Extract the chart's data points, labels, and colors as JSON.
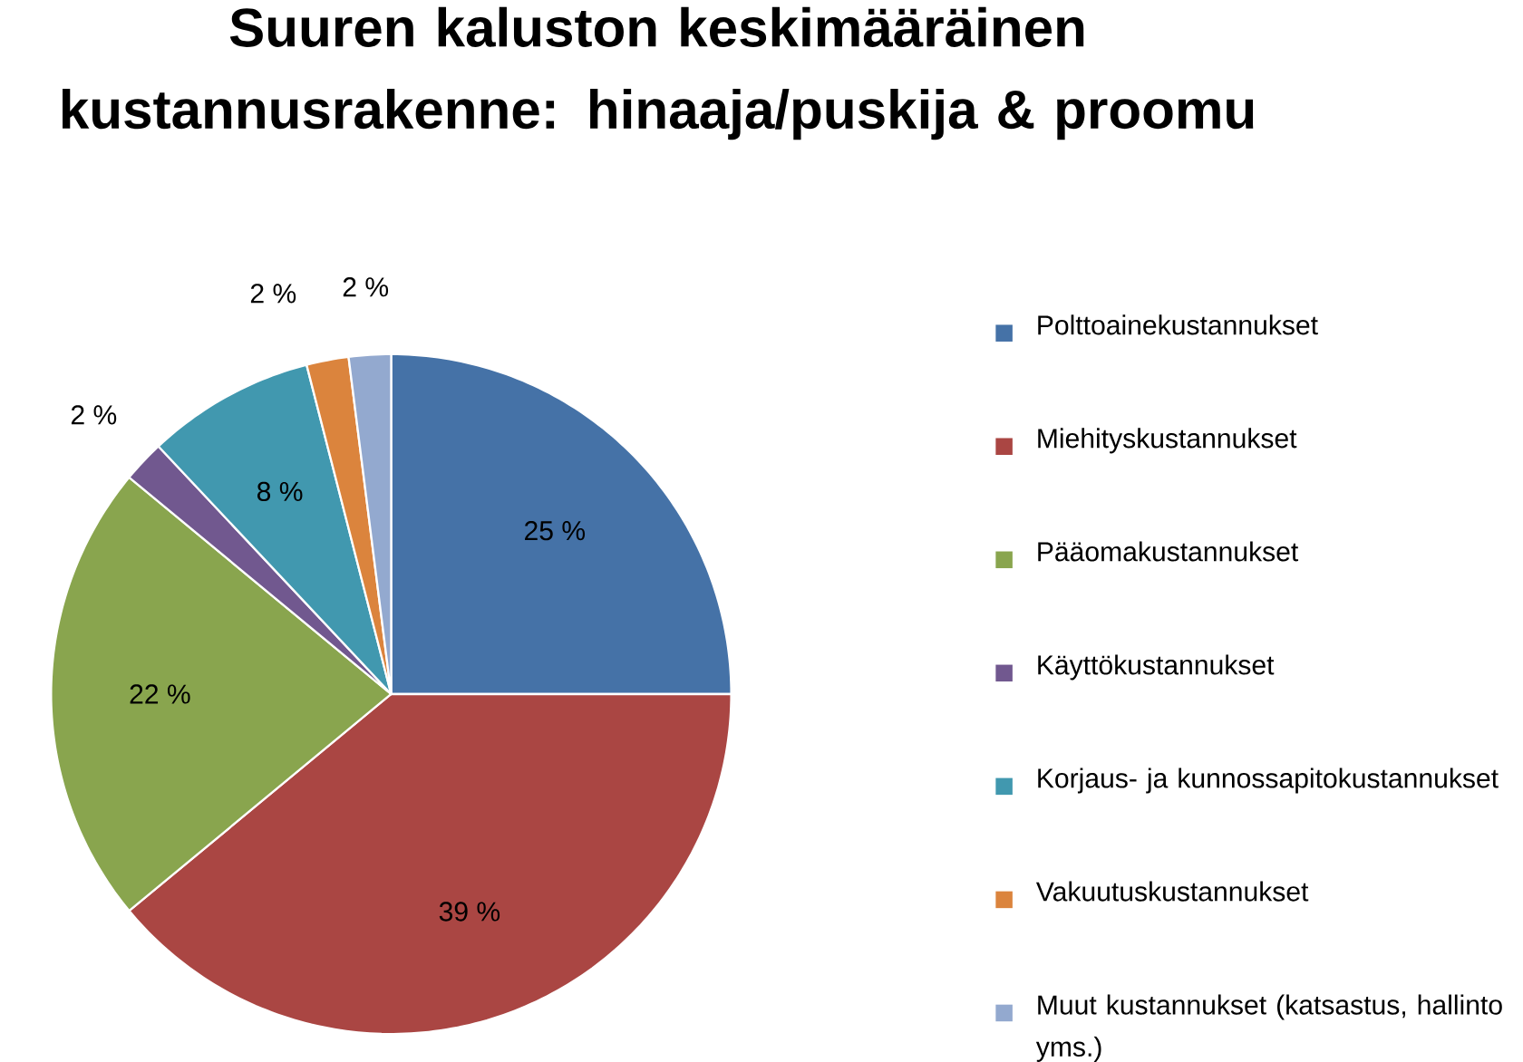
{
  "chart_data": {
    "type": "pie",
    "title": "Suuren kaluston keskimääräinen kustannusrakenne: hinaaja/puskija & proomu",
    "categories": [
      "Polttoainekustannukset",
      "Miehityskustannukset",
      "Pääomakustannukset",
      "Käyttökustannukset",
      "Korjaus- ja kunnossapitokustannukset",
      "Vakuutuskustannukset",
      "Muut kustannukset (katsastus, hallinto yms.)"
    ],
    "values": [
      25,
      39,
      22,
      2,
      8,
      2,
      2
    ],
    "value_labels": [
      "25 %",
      "39 %",
      "22 %",
      "2 %",
      "8 %",
      "2 %",
      "2 %"
    ],
    "colors": [
      "#4572a7",
      "#aa4643",
      "#89a54e",
      "#71588f",
      "#4198af",
      "#db843d",
      "#93a9cf"
    ],
    "legend": "right"
  }
}
